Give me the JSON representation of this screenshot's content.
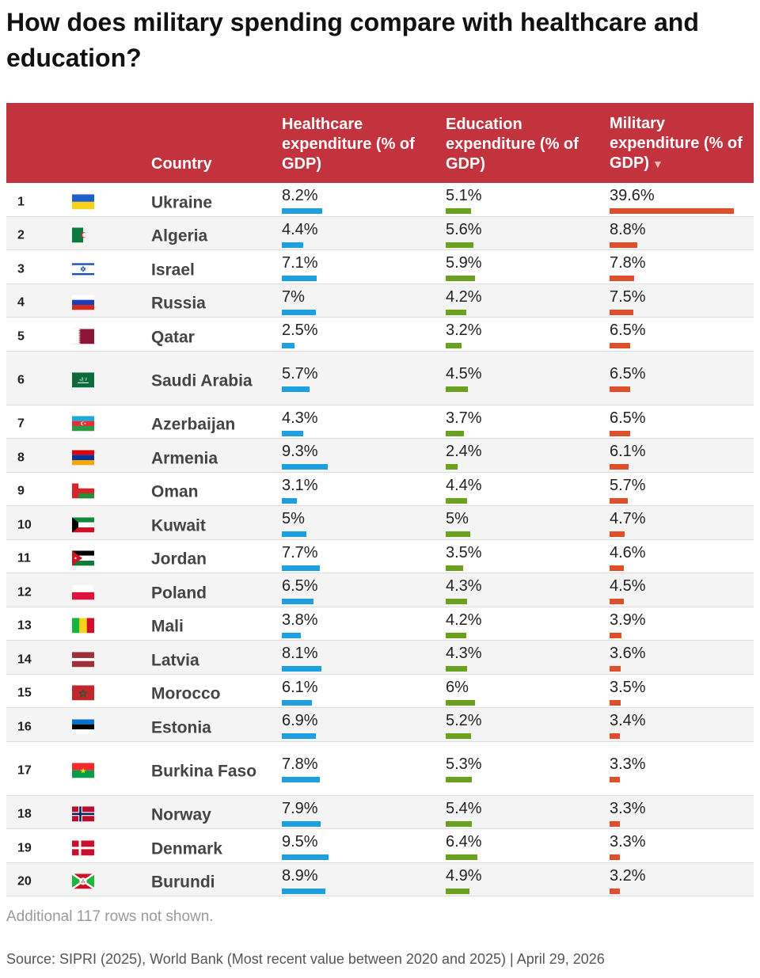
{
  "title": "How does military spending compare with healthcare and education?",
  "header": {
    "country": "Country",
    "health": "Healthcare expenditure (% of GDP)",
    "edu": "Education expenditure (% of GDP)",
    "mil": "Military expenditure (% of GDP)"
  },
  "colors": {
    "header": "#c3333e",
    "health": "#1d9fe0",
    "education": "#6aa21f",
    "military": "#e04f2c"
  },
  "chart_data": {
    "type": "table",
    "columns": [
      "Country",
      "Healthcare expenditure (% of GDP)",
      "Education expenditure (% of GDP)",
      "Military expenditure (% of GDP)"
    ],
    "sorted_by": "Military expenditure (% of GDP)",
    "sort_order": "descending",
    "rows": [
      {
        "rank": "1",
        "country": "Ukraine",
        "flag": "ukraine-flag-icon",
        "health": "8.2%",
        "edu": "5.1%",
        "mil": "39.6%"
      },
      {
        "rank": "2",
        "country": "Algeria",
        "flag": "algeria-flag-icon",
        "health": "4.4%",
        "edu": "5.6%",
        "mil": "8.8%"
      },
      {
        "rank": "3",
        "country": "Israel",
        "flag": "israel-flag-icon",
        "health": "7.1%",
        "edu": "5.9%",
        "mil": "7.8%"
      },
      {
        "rank": "4",
        "country": "Russia",
        "flag": "russia-flag-icon",
        "health": "7%",
        "edu": "4.2%",
        "mil": "7.5%"
      },
      {
        "rank": "5",
        "country": "Qatar",
        "flag": "qatar-flag-icon",
        "health": "2.5%",
        "edu": "3.2%",
        "mil": "6.5%"
      },
      {
        "rank": "6",
        "country": "Saudi Arabia",
        "flag": "saudi-arabia-flag-icon",
        "health": "5.7%",
        "edu": "4.5%",
        "mil": "6.5%"
      },
      {
        "rank": "7",
        "country": "Azerbaijan",
        "flag": "azerbaijan-flag-icon",
        "health": "4.3%",
        "edu": "3.7%",
        "mil": "6.5%"
      },
      {
        "rank": "8",
        "country": "Armenia",
        "flag": "armenia-flag-icon",
        "health": "9.3%",
        "edu": "2.4%",
        "mil": "6.1%"
      },
      {
        "rank": "9",
        "country": "Oman",
        "flag": "oman-flag-icon",
        "health": "3.1%",
        "edu": "4.4%",
        "mil": "5.7%"
      },
      {
        "rank": "10",
        "country": "Kuwait",
        "flag": "kuwait-flag-icon",
        "health": "5%",
        "edu": "5%",
        "mil": "4.7%"
      },
      {
        "rank": "11",
        "country": "Jordan",
        "flag": "jordan-flag-icon",
        "health": "7.7%",
        "edu": "3.5%",
        "mil": "4.6%"
      },
      {
        "rank": "12",
        "country": "Poland",
        "flag": "poland-flag-icon",
        "health": "6.5%",
        "edu": "4.3%",
        "mil": "4.5%"
      },
      {
        "rank": "13",
        "country": "Mali",
        "flag": "mali-flag-icon",
        "health": "3.8%",
        "edu": "4.2%",
        "mil": "3.9%"
      },
      {
        "rank": "14",
        "country": "Latvia",
        "flag": "latvia-flag-icon",
        "health": "8.1%",
        "edu": "4.3%",
        "mil": "3.6%"
      },
      {
        "rank": "15",
        "country": "Morocco",
        "flag": "morocco-flag-icon",
        "health": "6.1%",
        "edu": "6%",
        "mil": "3.5%"
      },
      {
        "rank": "16",
        "country": "Estonia",
        "flag": "estonia-flag-icon",
        "health": "6.9%",
        "edu": "5.2%",
        "mil": "3.4%"
      },
      {
        "rank": "17",
        "country": "Burkina Faso",
        "flag": "burkina-faso-flag-icon",
        "health": "7.8%",
        "edu": "5.3%",
        "mil": "3.3%"
      },
      {
        "rank": "18",
        "country": "Norway",
        "flag": "norway-flag-icon",
        "health": "7.9%",
        "edu": "5.4%",
        "mil": "3.3%"
      },
      {
        "rank": "19",
        "country": "Denmark",
        "flag": "denmark-flag-icon",
        "health": "9.5%",
        "edu": "6.4%",
        "mil": "3.3%"
      },
      {
        "rank": "20",
        "country": "Burundi",
        "flag": "burundi-flag-icon",
        "health": "8.9%",
        "edu": "4.9%",
        "mil": "3.2%"
      }
    ]
  },
  "note": "Additional 117 rows not shown.",
  "source": "Source: SIPRI (2025), World Bank (Most recent value between 2020 and 2025) | April 29, 2026"
}
